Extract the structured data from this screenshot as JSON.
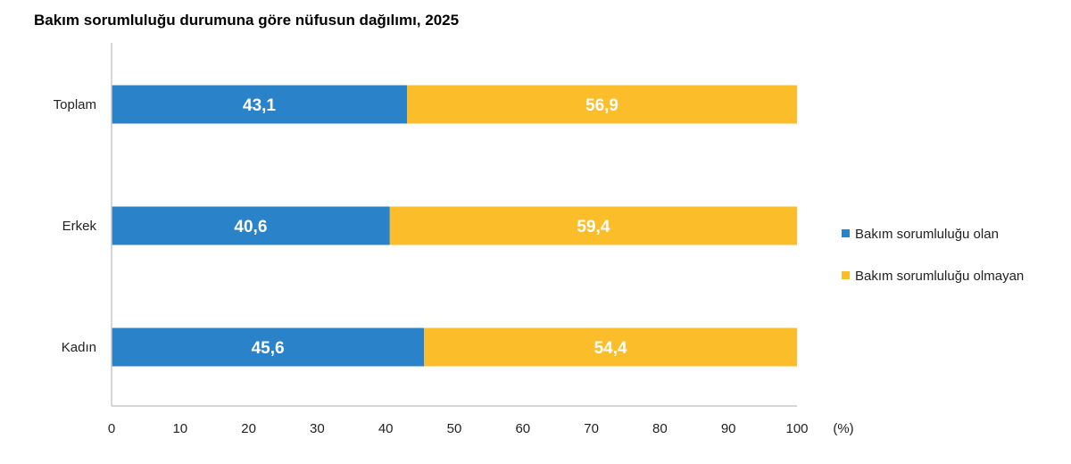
{
  "chart_data": {
    "type": "bar",
    "orientation": "horizontal",
    "stacked": true,
    "title": "Bakım sorumluluğu durumuna göre nüfusun dağılımı, 2025",
    "categories": [
      "Toplam",
      "Erkek",
      "Kadın"
    ],
    "series": [
      {
        "name": "Bakım sorumluluğu olan",
        "values": [
          43.1,
          40.6,
          45.6
        ],
        "labels": [
          "43,1",
          "40,6",
          "45,6"
        ],
        "color": "#2a82c8"
      },
      {
        "name": "Bakım sorumluluğu olmayan",
        "values": [
          56.9,
          59.4,
          54.4
        ],
        "labels": [
          "56,9",
          "59,4",
          "54,4"
        ],
        "color": "#fbbd29"
      }
    ],
    "xlim": [
      0,
      100
    ],
    "xticks": [
      "0",
      "10",
      "20",
      "30",
      "40",
      "50",
      "60",
      "70",
      "80",
      "90",
      "100"
    ],
    "xunit": "(%)",
    "grid": false,
    "legend": "right"
  }
}
